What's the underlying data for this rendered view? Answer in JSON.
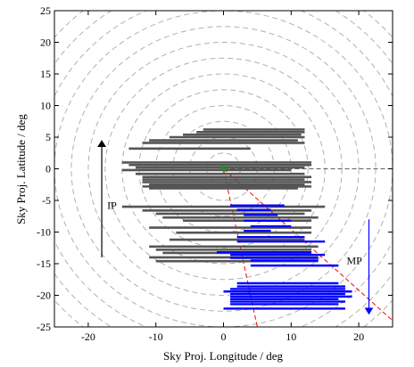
{
  "chart_data": {
    "type": "scatter",
    "xlabel": "Sky Proj. Longitude / deg",
    "ylabel": "Sky Proj. Latitude / deg",
    "xlim": [
      -25,
      25
    ],
    "ylim": [
      -25,
      25
    ],
    "xticks": [
      -20,
      -10,
      0,
      10,
      20
    ],
    "yticks": [
      -25,
      -20,
      -15,
      -10,
      -5,
      0,
      5,
      10,
      15,
      20,
      25
    ],
    "grid": "concentric dashed circles",
    "circles": {
      "center": [
        0,
        0
      ],
      "radii": [
        2.5,
        5,
        7.5,
        10,
        12.5,
        15,
        17.5,
        20,
        22.5,
        25,
        27.5,
        30,
        32.5
      ],
      "color": "#b0b0b0"
    },
    "series": [
      {
        "color": "#555555",
        "segments": [
          {
            "x": [
              -3,
              12
            ],
            "y": 6.2
          },
          {
            "x": [
              -4,
              12
            ],
            "y": 5.8
          },
          {
            "x": [
              -6,
              11.5
            ],
            "y": 5.4
          },
          {
            "x": [
              -8,
              12
            ],
            "y": 5.0
          },
          {
            "x": [
              -11,
              11
            ],
            "y": 4.5
          },
          {
            "x": [
              -12,
              12
            ],
            "y": 4.1
          },
          {
            "x": [
              -14,
              4
            ],
            "y": 3.2
          },
          {
            "x": [
              -15,
              13
            ],
            "y": 1.0
          },
          {
            "x": [
              -14,
              13
            ],
            "y": 0.6
          },
          {
            "x": [
              -13,
              12
            ],
            "y": 0.2
          },
          {
            "x": [
              -15,
              10
            ],
            "y": -0.2
          },
          {
            "x": [
              -13,
              12
            ],
            "y": -0.8
          },
          {
            "x": [
              -12,
              13
            ],
            "y": -1.3
          },
          {
            "x": [
              -12,
              12
            ],
            "y": -1.7
          },
          {
            "x": [
              -12,
              13
            ],
            "y": -2.1
          },
          {
            "x": [
              -11,
              12
            ],
            "y": -2.5
          },
          {
            "x": [
              -12,
              13
            ],
            "y": -2.8
          },
          {
            "x": [
              -11,
              11
            ],
            "y": -3.1
          },
          {
            "x": [
              -15,
              15
            ],
            "y": -6.0
          },
          {
            "x": [
              -12,
              13
            ],
            "y": -6.6
          },
          {
            "x": [
              -10,
              12
            ],
            "y": -7.1
          },
          {
            "x": [
              -9,
              14
            ],
            "y": -7.7
          },
          {
            "x": [
              -6,
              13
            ],
            "y": -8.2
          },
          {
            "x": [
              -11,
              13
            ],
            "y": -9.3
          },
          {
            "x": [
              -7,
              13
            ],
            "y": -10.1
          },
          {
            "x": [
              -8,
              12
            ],
            "y": -11.2
          },
          {
            "x": [
              -11,
              14
            ],
            "y": -12.3
          },
          {
            "x": [
              -10,
              13
            ],
            "y": -12.8
          },
          {
            "x": [
              -9,
              13
            ],
            "y": -13.3
          },
          {
            "x": [
              -11,
              14
            ],
            "y": -14.0
          },
          {
            "x": [
              -10,
              14
            ],
            "y": -14.6
          }
        ]
      },
      {
        "color": "#0000ff",
        "segments": [
          {
            "x": [
              1,
              9
            ],
            "y": -5.8
          },
          {
            "x": [
              2,
              7
            ],
            "y": -6.5
          },
          {
            "x": [
              3,
              8
            ],
            "y": -7.3
          },
          {
            "x": [
              3,
              10
            ],
            "y": -8.2
          },
          {
            "x": [
              4,
              10
            ],
            "y": -9.1
          },
          {
            "x": [
              3,
              7
            ],
            "y": -9.8
          },
          {
            "x": [
              2,
              12
            ],
            "y": -10.8
          },
          {
            "x": [
              2,
              15
            ],
            "y": -11.5
          },
          {
            "x": [
              -1,
              13
            ],
            "y": -13.2
          },
          {
            "x": [
              1,
              15
            ],
            "y": -13.6
          },
          {
            "x": [
              1,
              14
            ],
            "y": -14.1
          },
          {
            "x": [
              4,
              14
            ],
            "y": -14.5
          },
          {
            "x": [
              4,
              17
            ],
            "y": -15.3
          },
          {
            "x": [
              2,
              17
            ],
            "y": -18.1
          },
          {
            "x": [
              2,
              18
            ],
            "y": -18.6
          },
          {
            "x": [
              1,
              18
            ],
            "y": -19.0
          },
          {
            "x": [
              0,
              19
            ],
            "y": -19.4
          },
          {
            "x": [
              1,
              18
            ],
            "y": -19.8
          },
          {
            "x": [
              1,
              19
            ],
            "y": -20.2
          },
          {
            "x": [
              1,
              17
            ],
            "y": -20.6
          },
          {
            "x": [
              1,
              18
            ],
            "y": -21.0
          },
          {
            "x": [
              1,
              17
            ],
            "y": -21.4
          },
          {
            "x": [
              0,
              18
            ],
            "y": -22.1
          }
        ]
      }
    ],
    "reference_lines": [
      {
        "style": "dashed",
        "color": "#606060",
        "points": [
          [
            0,
            0
          ],
          [
            25,
            0
          ]
        ]
      },
      {
        "style": "dashed",
        "color": "#ff0000",
        "points": [
          [
            0,
            0
          ],
          [
            5,
            -25
          ]
        ]
      },
      {
        "style": "dashed",
        "color": "#ff0000",
        "points": [
          [
            0,
            0
          ],
          [
            25,
            -24
          ]
        ]
      }
    ],
    "origin_marker": {
      "x": 0,
      "y": 0,
      "symbol": "+",
      "color": "#00aa00"
    },
    "annotations": [
      {
        "text": "IP",
        "x": -18,
        "arrow": {
          "from": [
            -18,
            -14
          ],
          "to": [
            -18,
            4
          ]
        },
        "color": "#000000",
        "label_x": -17.2,
        "label_y": -5.8
      },
      {
        "text": "MP",
        "x": 21.5,
        "arrow": {
          "from": [
            21.5,
            -8
          ],
          "to": [
            21.5,
            -22.5
          ]
        },
        "color": "#0000ff",
        "label_x": 18.2,
        "label_y": -14.5
      }
    ]
  }
}
